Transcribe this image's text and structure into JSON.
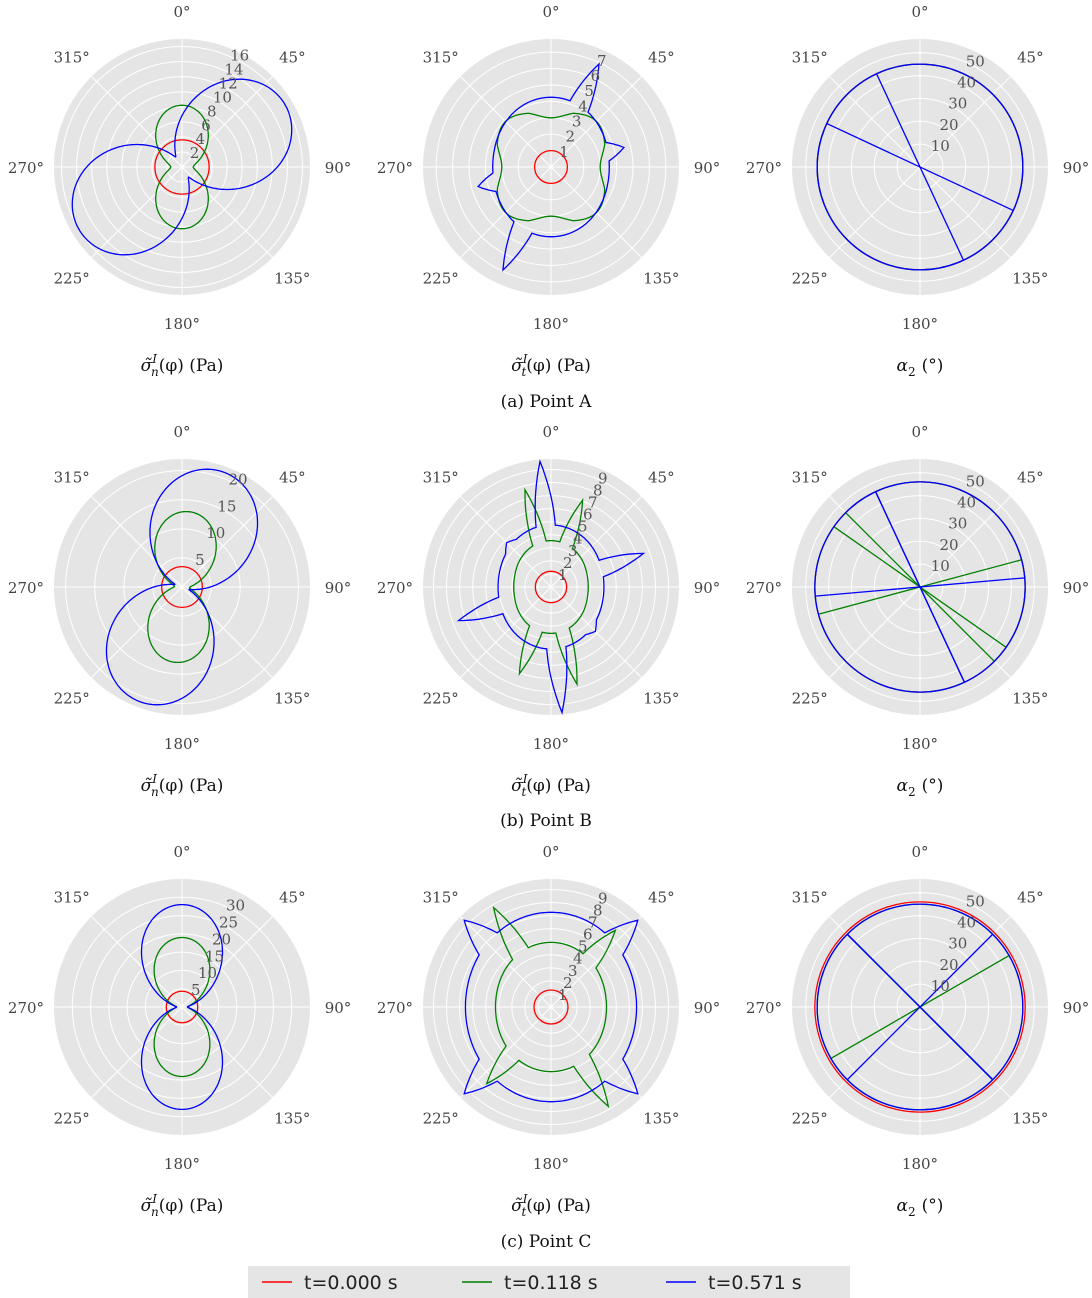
{
  "chart_data": {
    "type": "polar",
    "angle_tick_labels": [
      "0°",
      "45°",
      "90°",
      "135°",
      "180°",
      "225°",
      "270°",
      "315°"
    ],
    "legend": {
      "placement": "bottom-center",
      "entries": [
        {
          "label": "t=0.000 s",
          "color": "#ff0000"
        },
        {
          "label": "t=0.118 s",
          "color": "#008000"
        },
        {
          "label": "t=0.571 s",
          "color": "#0000ff"
        }
      ]
    },
    "rows": [
      {
        "caption": "(a) Point A",
        "panels": [
          {
            "xlabel_main": "σ̃",
            "xlabel_sup": "I",
            "xlabel_sub": "n",
            "xlabel_rest": "(φ) (Pa)",
            "rmax": 17,
            "radial_ticks": [
              "2",
              "4",
              "6",
              "8",
              "10",
              "12",
              "14",
              "16"
            ],
            "series": [
              {
                "name": "t=0.000 s",
                "kind": "circle",
                "r": 3.6
              },
              {
                "name": "t=0.118 s",
                "kind": "lobes",
                "rmin": 1.5,
                "rmax": 8.2,
                "angle": 0,
                "p": 2
              },
              {
                "name": "t=0.571 s",
                "kind": "lobes",
                "rmin": 1.6,
                "rmax": 16,
                "angle": 58,
                "p": 1.6
              }
            ]
          },
          {
            "xlabel_main": "σ̃",
            "xlabel_sup": "I",
            "xlabel_sub": "t",
            "xlabel_rest": "(φ) (Pa)",
            "rmax": 7.8,
            "radial_ticks": [
              "1",
              "2",
              "3",
              "4",
              "5",
              "6",
              "7"
            ],
            "series": [
              {
                "name": "t=0.000 s",
                "kind": "circle",
                "r": 1.0
              },
              {
                "name": "t=0.118 s",
                "kind": "squircle",
                "a": 3.3,
                "b": 1.0,
                "dips": 0.5
              },
              {
                "name": "t=0.571 s",
                "kind": "star",
                "base": 3.9,
                "spikes": [
                  [
                    25,
                    6.7
                  ],
                  [
                    205,
                    6.7
                  ],
                  [
                    75,
                    4.9
                  ],
                  [
                    255,
                    4.9
                  ],
                  [
                    325,
                    3.6
                  ],
                  [
                    145,
                    3.6
                  ]
                ]
              }
            ]
          },
          {
            "xlabel_main": "α",
            "xlabel_sub": "2",
            "xlabel_rest": "(°)",
            "rmax": 56,
            "radial_ticks": [
              "10",
              "20",
              "30",
              "40",
              "50"
            ],
            "series": [
              {
                "name": "t=0.000 s",
                "kind": "circle",
                "r": 45
              },
              {
                "name": "t=0.118 s",
                "kind": "circle",
                "r": 45
              },
              {
                "name": "t=0.571 s",
                "kind": "circle_lines",
                "r": 45,
                "lines": [
                  155,
                  295
                ]
              }
            ]
          }
        ]
      },
      {
        "caption": "(b) Point B",
        "panels": [
          {
            "xlabel_main": "σ̃",
            "xlabel_sup": "I",
            "xlabel_sub": "n",
            "xlabel_rest": "(φ) (Pa)",
            "rmax": 22,
            "radial_ticks": [
              "5",
              "10",
              "15",
              "20"
            ],
            "series": [
              {
                "name": "t=0.000 s",
                "kind": "circle",
                "r": 3.5
              },
              {
                "name": "t=0.118 s",
                "kind": "lobes",
                "rmin": 1.3,
                "rmax": 13,
                "angle": 5,
                "p": 2
              },
              {
                "name": "t=0.571 s",
                "kind": "lobes",
                "rmin": 1.3,
                "rmax": 21,
                "angle": 20,
                "p": 1.6
              }
            ]
          },
          {
            "xlabel_main": "σ̃",
            "xlabel_sup": "I",
            "xlabel_sub": "t",
            "xlabel_rest": "(φ) (Pa)",
            "rmax": 9.8,
            "radial_ticks": [
              "1",
              "2",
              "3",
              "4",
              "5",
              "6",
              "7",
              "8",
              "9"
            ],
            "series": [
              {
                "name": "t=0.000 s",
                "kind": "circle",
                "r": 1.2
              },
              {
                "name": "t=0.118 s",
                "kind": "star",
                "base": 3.2,
                "spikes": [
                  [
                    20,
                    6.8
                  ],
                  [
                    200,
                    6.8
                  ],
                  [
                    345,
                    7.4
                  ],
                  [
                    165,
                    7.4
                  ]
                ]
              },
              {
                "name": "t=0.571 s",
                "kind": "star",
                "base": 4.4,
                "spikes": [
                  [
                    355,
                    9.3
                  ],
                  [
                    175,
                    9.3
                  ],
                  [
                    70,
                    7.8
                  ],
                  [
                    250,
                    7.8
                  ],
                  [
                    135,
                    4.8
                  ],
                  [
                    315,
                    4.8
                  ]
                ]
              }
            ]
          },
          {
            "xlabel_main": "α",
            "xlabel_sub": "2",
            "xlabel_rest": "(°)",
            "rmax": 56,
            "radial_ticks": [
              "10",
              "20",
              "30",
              "40",
              "50"
            ],
            "series": [
              {
                "name": "t=0.000 s",
                "kind": "circle",
                "r": 46
              },
              {
                "name": "t=0.118 s",
                "kind": "circle_lines",
                "r": 46,
                "lines": [
                  75,
                  135,
                  305
                ]
              },
              {
                "name": "t=0.571 s",
                "kind": "circle_lines",
                "r": 46,
                "lines": [
                  85,
                  155,
                  335
                ]
              }
            ]
          }
        ]
      },
      {
        "caption": "(c) Point C",
        "panels": [
          {
            "xlabel_main": "σ̃",
            "xlabel_sup": "I",
            "xlabel_sub": "n",
            "xlabel_rest": "(φ) (Pa)",
            "rmax": 35,
            "radial_ticks": [
              "5",
              "10",
              "15",
              "20",
              "25",
              "30"
            ],
            "series": [
              {
                "name": "t=0.000 s",
                "kind": "circle",
                "r": 4.3
              },
              {
                "name": "t=0.118 s",
                "kind": "lobes",
                "rmin": 1.5,
                "rmax": 19,
                "angle": 0,
                "p": 2
              },
              {
                "name": "t=0.571 s",
                "kind": "lobes",
                "rmin": 1.5,
                "rmax": 28,
                "angle": 0,
                "p": 2
              }
            ]
          },
          {
            "xlabel_main": "σ̃",
            "xlabel_sup": "I",
            "xlabel_sub": "t",
            "xlabel_rest": "(φ) (Pa)",
            "rmax": 9.8,
            "radial_ticks": [
              "1",
              "2",
              "3",
              "4",
              "5",
              "6",
              "7",
              "8",
              "9"
            ],
            "series": [
              {
                "name": "t=0.000 s",
                "kind": "circle",
                "r": 1.3
              },
              {
                "name": "t=0.118 s",
                "kind": "star",
                "base": 4.6,
                "spikes": [
                  [
                    330,
                    8.6
                  ],
                  [
                    150,
                    8.6
                  ],
                  [
                    40,
                    7.6
                  ],
                  [
                    220,
                    7.6
                  ]
                ]
              },
              {
                "name": "t=0.571 s",
                "kind": "star",
                "base": 6.9,
                "spikes": [
                  [
                    315,
                    9.4
                  ],
                  [
                    135,
                    9.4
                  ],
                  [
                    45,
                    9.4
                  ],
                  [
                    225,
                    9.4
                  ]
                ]
              }
            ]
          },
          {
            "xlabel_main": "α",
            "xlabel_sub": "2",
            "xlabel_rest": "(°)",
            "rmax": 56,
            "radial_ticks": [
              "10",
              "20",
              "30",
              "40",
              "50"
            ],
            "series": [
              {
                "name": "t=0.000 s",
                "kind": "circle",
                "r": 46
              },
              {
                "name": "t=0.118 s",
                "kind": "circle_lines",
                "r": 45,
                "lines": [
                  60,
                  135,
                  315
                ]
              },
              {
                "name": "t=0.571 s",
                "kind": "circle_lines",
                "r": 45,
                "lines": [
                  45,
                  135,
                  315
                ]
              }
            ]
          }
        ]
      }
    ]
  }
}
